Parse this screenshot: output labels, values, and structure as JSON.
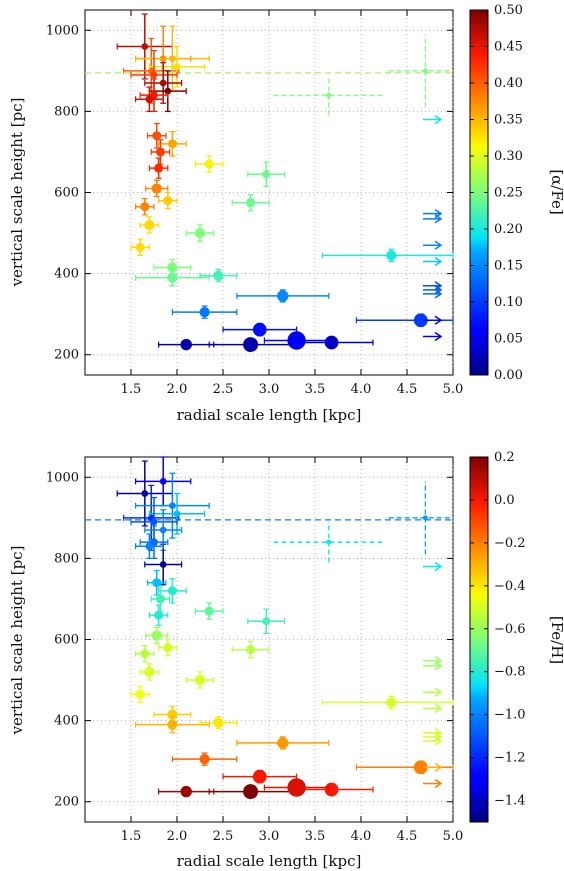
{
  "chart_data": [
    {
      "type": "scatter",
      "xlabel": "radial scale length [kpc]",
      "ylabel": "vertical scale height [pc]",
      "xlim": [
        1.0,
        5.0
      ],
      "ylim": [
        150,
        1050
      ],
      "xticks": [
        "1.5",
        "2.0",
        "2.5",
        "3.0",
        "3.5",
        "4.0",
        "4.5",
        "5.0"
      ],
      "yticks": [
        "200",
        "400",
        "600",
        "800",
        "1000"
      ],
      "colorbar": {
        "label": "[α/Fe]",
        "range": [
          0.0,
          0.5
        ],
        "ticks": [
          "0.00",
          "0.05",
          "0.10",
          "0.15",
          "0.20",
          "0.25",
          "0.30",
          "0.35",
          "0.40",
          "0.45",
          "0.50"
        ]
      },
      "reference_line_y": 895,
      "points": [
        {
          "x": 1.65,
          "y": 960,
          "xerr": 0.3,
          "yerr": 80,
          "c": 0.47,
          "s": 4
        },
        {
          "x": 1.72,
          "y": 900,
          "xerr": 0.3,
          "yerr": 80,
          "c": 0.4,
          "s": 4
        },
        {
          "x": 1.85,
          "y": 930,
          "xerr": 0.3,
          "yerr": 80,
          "c": 0.38,
          "s": 4
        },
        {
          "x": 1.95,
          "y": 930,
          "xerr": 0.4,
          "yerr": 80,
          "c": 0.35,
          "s": 4
        },
        {
          "x": 2.0,
          "y": 910,
          "xerr": 0.3,
          "yerr": 50,
          "c": 0.33,
          "s": 4
        },
        {
          "x": 1.75,
          "y": 890,
          "xerr": 0.25,
          "yerr": 60,
          "c": 0.42,
          "s": 4
        },
        {
          "x": 1.85,
          "y": 870,
          "xerr": 0.2,
          "yerr": 50,
          "c": 0.48,
          "s": 4
        },
        {
          "x": 1.75,
          "y": 840,
          "xerr": 0.15,
          "yerr": 40,
          "c": 0.44,
          "s": 5
        },
        {
          "x": 1.9,
          "y": 850,
          "xerr": 0.2,
          "yerr": 50,
          "c": 0.5,
          "s": 4
        },
        {
          "x": 1.7,
          "y": 830,
          "xerr": 0.15,
          "yerr": 30,
          "c": 0.46,
          "s": 5
        },
        {
          "x": 1.95,
          "y": 720,
          "xerr": 0.15,
          "yerr": 30,
          "c": 0.36,
          "s": 6
        },
        {
          "x": 1.78,
          "y": 740,
          "xerr": 0.1,
          "yerr": 30,
          "c": 0.41,
          "s": 6
        },
        {
          "x": 1.82,
          "y": 700,
          "xerr": 0.1,
          "yerr": 30,
          "c": 0.42,
          "s": 6
        },
        {
          "x": 1.8,
          "y": 660,
          "xerr": 0.1,
          "yerr": 25,
          "c": 0.43,
          "s": 6
        },
        {
          "x": 2.35,
          "y": 670,
          "xerr": 0.15,
          "yerr": 20,
          "c": 0.32,
          "s": 6
        },
        {
          "x": 2.97,
          "y": 645,
          "xerr": 0.2,
          "yerr": 30,
          "c": 0.24,
          "s": 5
        },
        {
          "x": 1.78,
          "y": 610,
          "xerr": 0.12,
          "yerr": 20,
          "c": 0.38,
          "s": 7
        },
        {
          "x": 1.9,
          "y": 580,
          "xerr": 0.1,
          "yerr": 20,
          "c": 0.34,
          "s": 6
        },
        {
          "x": 2.8,
          "y": 575,
          "xerr": 0.2,
          "yerr": 20,
          "c": 0.24,
          "s": 6
        },
        {
          "x": 1.65,
          "y": 565,
          "xerr": 0.1,
          "yerr": 20,
          "c": 0.38,
          "s": 6
        },
        {
          "x": 1.7,
          "y": 520,
          "xerr": 0.1,
          "yerr": 20,
          "c": 0.33,
          "s": 7
        },
        {
          "x": 2.25,
          "y": 500,
          "xerr": 0.15,
          "yerr": 20,
          "c": 0.25,
          "s": 7
        },
        {
          "x": 1.6,
          "y": 465,
          "xerr": 0.1,
          "yerr": 20,
          "c": 0.33,
          "s": 6
        },
        {
          "x": 4.33,
          "y": 445,
          "xerr": 0.75,
          "yerr": 15,
          "c": 0.2,
          "s": 7
        },
        {
          "x": 1.95,
          "y": 415,
          "xerr": 0.2,
          "yerr": 20,
          "c": 0.25,
          "s": 7
        },
        {
          "x": 1.95,
          "y": 390,
          "xerr": 0.4,
          "yerr": 20,
          "c": 0.24,
          "s": 7
        },
        {
          "x": 2.45,
          "y": 395,
          "xerr": 0.2,
          "yerr": 15,
          "c": 0.22,
          "s": 7
        },
        {
          "x": 3.15,
          "y": 345,
          "xerr": 0.5,
          "yerr": 15,
          "c": 0.15,
          "s": 8
        },
        {
          "x": 2.3,
          "y": 305,
          "xerr": 0.35,
          "yerr": 15,
          "c": 0.14,
          "s": 7
        },
        {
          "x": 4.65,
          "y": 285,
          "xerr": 0.7,
          "yerr": 15,
          "c": 0.1,
          "s": 10
        },
        {
          "x": 2.9,
          "y": 262,
          "xerr": 0.4,
          "yerr": 15,
          "c": 0.07,
          "s": 10
        },
        {
          "x": 2.1,
          "y": 225,
          "xerr": 0.3,
          "yerr": 10,
          "c": 0.02,
          "s": 8
        },
        {
          "x": 2.8,
          "y": 225,
          "xerr": 0.45,
          "yerr": 10,
          "c": 0.02,
          "s": 11
        },
        {
          "x": 3.3,
          "y": 235,
          "xerr": 0.35,
          "yerr": 10,
          "c": 0.06,
          "s": 14
        },
        {
          "x": 3.68,
          "y": 230,
          "xerr": 0.45,
          "yerr": 10,
          "c": 0.03,
          "s": 10
        }
      ],
      "dashed_points": [
        {
          "x": 3.65,
          "y": 840,
          "xerr": 0.6,
          "yerr": 50,
          "c": 0.25
        },
        {
          "x": 4.7,
          "y": 900,
          "xerr": 0.4,
          "yerr": 90,
          "c": 0.25
        }
      ],
      "arrows": [
        {
          "y": 780,
          "c": 0.2
        },
        {
          "y": 548,
          "c": 0.14
        },
        {
          "y": 535,
          "c": 0.14
        },
        {
          "y": 470,
          "c": 0.15
        },
        {
          "y": 430,
          "c": 0.18
        },
        {
          "y": 370,
          "c": 0.11
        },
        {
          "y": 360,
          "c": 0.12
        },
        {
          "y": 350,
          "c": 0.13
        },
        {
          "y": 285,
          "c": 0.06
        },
        {
          "y": 245,
          "c": 0.04
        }
      ]
    },
    {
      "type": "scatter",
      "xlabel": "radial scale length [kpc]",
      "ylabel": "vertical scale height [pc]",
      "xlim": [
        1.0,
        5.0
      ],
      "ylim": [
        150,
        1050
      ],
      "xticks": [
        "1.5",
        "2.0",
        "2.5",
        "3.0",
        "3.5",
        "4.0",
        "4.5",
        "5.0"
      ],
      "yticks": [
        "200",
        "400",
        "600",
        "800",
        "1000"
      ],
      "colorbar": {
        "label": "[Fe/H]",
        "range": [
          -1.5,
          0.2
        ],
        "ticks": [
          "0.2",
          "0.0",
          "−0.2",
          "−0.4",
          "−0.6",
          "−0.8",
          "−1.0",
          "−1.2",
          "−1.4"
        ],
        "tick_values": [
          0.2,
          0.0,
          -0.2,
          -0.4,
          -0.6,
          -0.8,
          -1.0,
          -1.2,
          -1.4
        ]
      },
      "reference_line_y": 895,
      "points": [
        {
          "x": 1.65,
          "y": 960,
          "xerr": 0.3,
          "yerr": 80,
          "c": -1.45,
          "s": 4
        },
        {
          "x": 1.72,
          "y": 900,
          "xerr": 0.3,
          "yerr": 80,
          "c": -1.2,
          "s": 4
        },
        {
          "x": 1.85,
          "y": 990,
          "xerr": 0.3,
          "yerr": 60,
          "c": -1.3,
          "s": 4
        },
        {
          "x": 1.95,
          "y": 930,
          "xerr": 0.4,
          "yerr": 80,
          "c": -1.0,
          "s": 4
        },
        {
          "x": 2.0,
          "y": 910,
          "xerr": 0.3,
          "yerr": 50,
          "c": -0.9,
          "s": 4
        },
        {
          "x": 1.75,
          "y": 890,
          "xerr": 0.25,
          "yerr": 60,
          "c": -1.1,
          "s": 4
        },
        {
          "x": 1.85,
          "y": 870,
          "xerr": 0.2,
          "yerr": 50,
          "c": -1.0,
          "s": 4
        },
        {
          "x": 1.75,
          "y": 840,
          "xerr": 0.15,
          "yerr": 40,
          "c": -1.05,
          "s": 5
        },
        {
          "x": 1.85,
          "y": 785,
          "xerr": 0.2,
          "yerr": 50,
          "c": -1.45,
          "s": 4
        },
        {
          "x": 1.7,
          "y": 830,
          "xerr": 0.15,
          "yerr": 30,
          "c": -1.0,
          "s": 5
        },
        {
          "x": 1.95,
          "y": 720,
          "xerr": 0.15,
          "yerr": 30,
          "c": -0.8,
          "s": 6
        },
        {
          "x": 1.78,
          "y": 740,
          "xerr": 0.1,
          "yerr": 30,
          "c": -0.9,
          "s": 6
        },
        {
          "x": 1.82,
          "y": 700,
          "xerr": 0.1,
          "yerr": 30,
          "c": -0.75,
          "s": 6
        },
        {
          "x": 1.8,
          "y": 660,
          "xerr": 0.1,
          "yerr": 25,
          "c": -0.8,
          "s": 6
        },
        {
          "x": 2.35,
          "y": 670,
          "xerr": 0.15,
          "yerr": 20,
          "c": -0.7,
          "s": 6
        },
        {
          "x": 2.97,
          "y": 645,
          "xerr": 0.2,
          "yerr": 30,
          "c": -0.75,
          "s": 5
        },
        {
          "x": 1.78,
          "y": 610,
          "xerr": 0.12,
          "yerr": 20,
          "c": -0.6,
          "s": 7
        },
        {
          "x": 1.9,
          "y": 580,
          "xerr": 0.1,
          "yerr": 20,
          "c": -0.5,
          "s": 6
        },
        {
          "x": 2.8,
          "y": 575,
          "xerr": 0.2,
          "yerr": 20,
          "c": -0.55,
          "s": 6
        },
        {
          "x": 1.65,
          "y": 565,
          "xerr": 0.1,
          "yerr": 20,
          "c": -0.55,
          "s": 6
        },
        {
          "x": 1.7,
          "y": 520,
          "xerr": 0.1,
          "yerr": 20,
          "c": -0.5,
          "s": 7
        },
        {
          "x": 2.25,
          "y": 500,
          "xerr": 0.15,
          "yerr": 20,
          "c": -0.5,
          "s": 7
        },
        {
          "x": 1.6,
          "y": 465,
          "xerr": 0.1,
          "yerr": 20,
          "c": -0.45,
          "s": 6
        },
        {
          "x": 4.33,
          "y": 445,
          "xerr": 0.75,
          "yerr": 15,
          "c": -0.5,
          "s": 7
        },
        {
          "x": 1.95,
          "y": 415,
          "xerr": 0.2,
          "yerr": 20,
          "c": -0.35,
          "s": 7
        },
        {
          "x": 1.95,
          "y": 390,
          "xerr": 0.4,
          "yerr": 20,
          "c": -0.3,
          "s": 7
        },
        {
          "x": 2.45,
          "y": 395,
          "xerr": 0.2,
          "yerr": 15,
          "c": -0.4,
          "s": 7
        },
        {
          "x": 3.15,
          "y": 345,
          "xerr": 0.5,
          "yerr": 15,
          "c": -0.25,
          "s": 8
        },
        {
          "x": 2.3,
          "y": 305,
          "xerr": 0.35,
          "yerr": 15,
          "c": -0.15,
          "s": 7
        },
        {
          "x": 4.65,
          "y": 285,
          "xerr": 0.7,
          "yerr": 15,
          "c": -0.2,
          "s": 10
        },
        {
          "x": 2.9,
          "y": 262,
          "xerr": 0.4,
          "yerr": 15,
          "c": 0.0,
          "s": 10
        },
        {
          "x": 2.1,
          "y": 225,
          "xerr": 0.3,
          "yerr": 10,
          "c": 0.15,
          "s": 8
        },
        {
          "x": 2.8,
          "y": 225,
          "xerr": 0.45,
          "yerr": 10,
          "c": 0.2,
          "s": 11
        },
        {
          "x": 3.3,
          "y": 235,
          "xerr": 0.35,
          "yerr": 10,
          "c": 0.05,
          "s": 14
        },
        {
          "x": 3.68,
          "y": 230,
          "xerr": 0.45,
          "yerr": 10,
          "c": 0.0,
          "s": 10
        }
      ],
      "dashed_points": [
        {
          "x": 3.65,
          "y": 840,
          "xerr": 0.6,
          "yerr": 50,
          "c": -0.85
        },
        {
          "x": 4.7,
          "y": 900,
          "xerr": 0.4,
          "yerr": 90,
          "c": -0.95
        }
      ],
      "arrows": [
        {
          "y": 780,
          "c": -0.85
        },
        {
          "y": 548,
          "c": -0.6
        },
        {
          "y": 535,
          "c": -0.6
        },
        {
          "y": 470,
          "c": -0.55
        },
        {
          "y": 430,
          "c": -0.55
        },
        {
          "y": 370,
          "c": -0.5
        },
        {
          "y": 360,
          "c": -0.5
        },
        {
          "y": 350,
          "c": -0.5
        },
        {
          "y": 285,
          "c": -0.3
        },
        {
          "y": 245,
          "c": -0.2
        }
      ]
    }
  ]
}
